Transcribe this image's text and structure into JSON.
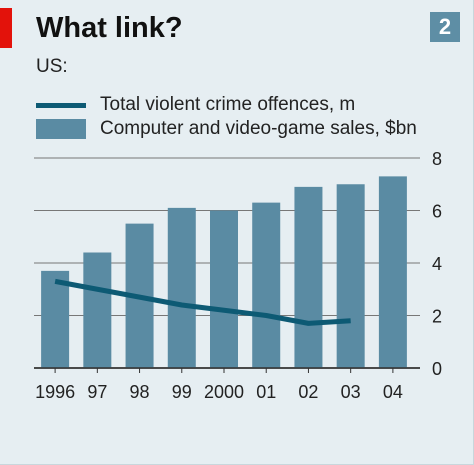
{
  "header": {
    "title": "What link?",
    "badge": "2",
    "subtitle": "US:"
  },
  "colors": {
    "bar": "#5a8ba3",
    "line": "#0d5a74",
    "accent_red": "#e3120b",
    "background": "#e6eef2",
    "badge": "#5e8ea5"
  },
  "chart_data": {
    "type": "bar",
    "categories": [
      "1996",
      "97",
      "98",
      "99",
      "2000",
      "01",
      "02",
      "03",
      "04"
    ],
    "series": [
      {
        "name": "Computer and video-game sales, $bn",
        "type": "bar",
        "values": [
          3.7,
          4.4,
          5.5,
          6.1,
          6.0,
          6.3,
          6.9,
          7.0,
          7.3
        ]
      },
      {
        "name": "Total violent crime offences, m",
        "type": "line",
        "values": [
          3.3,
          3.0,
          2.7,
          2.4,
          2.2,
          2.0,
          1.7,
          1.8,
          null
        ]
      }
    ],
    "y_ticks": [
      "0",
      "2",
      "4",
      "6",
      "8"
    ],
    "ylim": [
      0,
      8
    ],
    "grid": true,
    "y_axis_side": "right",
    "legend_position": "top-left"
  }
}
